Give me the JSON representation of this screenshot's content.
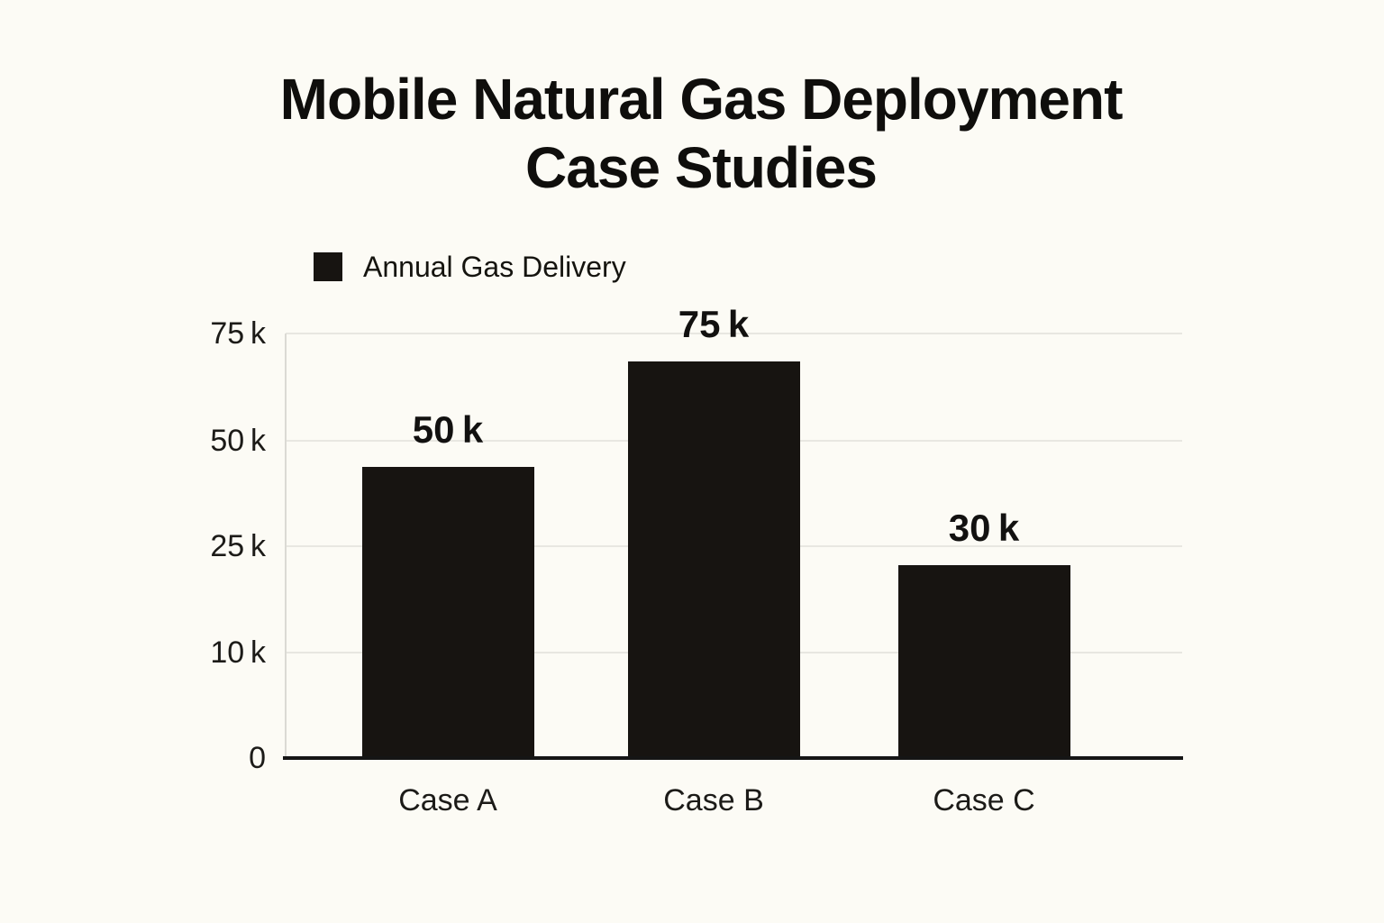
{
  "page": {
    "background_color": "#fcfbf5"
  },
  "title": {
    "line1": "Mobile Natural Gas Deployment",
    "line2": "Case Studies"
  },
  "legend": {
    "label": "Annual Gas Delivery",
    "swatch_color": "#171411"
  },
  "chart_data": {
    "type": "bar",
    "title": "Mobile Natural Gas Deployment Case Studies",
    "series_name": "Annual Gas Delivery",
    "categories": [
      "Case A",
      "Case B",
      "Case C"
    ],
    "values": [
      50000,
      75000,
      30000
    ],
    "value_labels": [
      "50 k",
      "75 k",
      "30 k"
    ],
    "drawn_values": [
      43800,
      68500,
      22330
    ],
    "y_ticks": {
      "values": [
        0,
        10000,
        25000,
        50000,
        75000
      ],
      "labels": [
        "0",
        "10 k",
        "25 k",
        "50 k",
        "75 k"
      ]
    },
    "xlabel": "",
    "ylabel": "",
    "bar_color": "#171411",
    "grid": true,
    "legend_position": "top-left above plot",
    "axis_note": "y ticks are evenly spaced although values are non-linear; bars are drawn slightly below their labeled values (drawn_values)"
  }
}
